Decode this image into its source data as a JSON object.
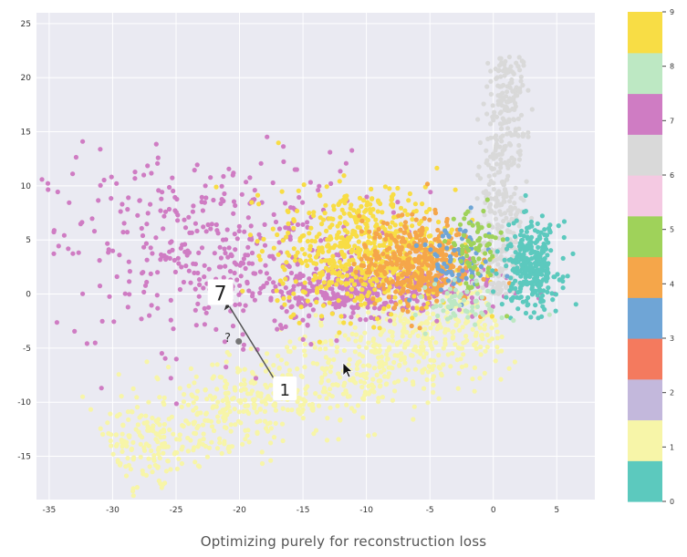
{
  "chart_data": {
    "type": "scatter",
    "caption": "Optimizing purely for reconstruction loss",
    "xlim": [
      -36,
      8
    ],
    "ylim": [
      -19,
      26
    ],
    "xticks": [
      -35,
      -30,
      -25,
      -20,
      -15,
      -10,
      -5,
      0,
      5
    ],
    "yticks": [
      -15,
      -10,
      -5,
      0,
      5,
      10,
      15,
      20,
      25
    ],
    "grid": true,
    "colorbar": {
      "placement": "right",
      "labels": [
        "0",
        "1",
        "2",
        "3",
        "4",
        "5",
        "6",
        "7",
        "8",
        "9"
      ],
      "colors": [
        "#5cc9be",
        "#f7f5a8",
        "#c3b8dc",
        "#f47a5e",
        "#6fa5d6",
        "#f5a64a",
        "#9fd25a",
        "#f4c9e2",
        "#d9d9d9",
        "#cf7cc3",
        "#bde8c3",
        "#f8dd45"
      ]
    },
    "clusters": [
      {
        "label": "1",
        "color": "#f7f5a8",
        "from": [
          -30,
          -15
        ],
        "to": [
          0,
          -2
        ],
        "spread": 2.2,
        "n": 900
      },
      {
        "label": "7",
        "color": "#cf7cc3",
        "center": [
          -22,
          4
        ],
        "sx": 6.5,
        "sy": 4.5,
        "n": 420
      },
      {
        "label": "7",
        "color": "#cf7cc3",
        "center": [
          -10,
          0.5
        ],
        "sx": 5,
        "sy": 1.2,
        "n": 400
      },
      {
        "label": "9",
        "color": "#f8dd45",
        "center": [
          -10,
          4
        ],
        "sx": 3.5,
        "sy": 2.8,
        "n": 650
      },
      {
        "label": "4",
        "color": "#f5a64a",
        "center": [
          -6,
          3
        ],
        "sx": 2.2,
        "sy": 2,
        "n": 400
      },
      {
        "label": "6",
        "color": "#d9d9d9",
        "from": [
          0.5,
          0
        ],
        "to": [
          1,
          22
        ],
        "spread": 0.8,
        "n": 400
      },
      {
        "label": "0",
        "color": "#5cc9be",
        "center": [
          3,
          2.5
        ],
        "sx": 1.1,
        "sy": 2,
        "n": 300
      },
      {
        "label": "3",
        "color": "#6fa5d6",
        "center": [
          -3,
          3
        ],
        "sx": 1.5,
        "sy": 1.8,
        "n": 70
      },
      {
        "label": "5",
        "color": "#9fd25a",
        "center": [
          -1.5,
          4
        ],
        "sx": 1,
        "sy": 2,
        "n": 70
      },
      {
        "label": "8",
        "color": "#bde8c3",
        "center": [
          -2,
          -1
        ],
        "sx": 1.5,
        "sy": 1,
        "n": 60
      }
    ],
    "annotations": [
      {
        "text": "7",
        "x": -21.5,
        "y": 0
      },
      {
        "text": "1",
        "x": -16.5,
        "y": -8.8
      },
      {
        "text": "?",
        "x": -20.5,
        "y": -4
      }
    ]
  }
}
